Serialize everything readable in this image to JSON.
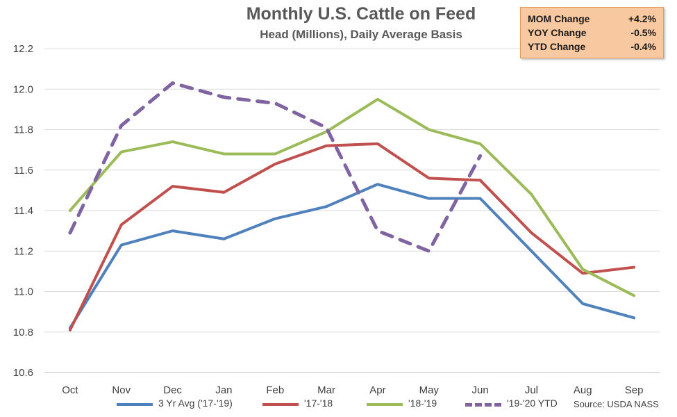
{
  "chart_data": {
    "type": "line",
    "title": "Monthly U.S. Cattle on Feed",
    "subtitle": "Head (Millions), Daily Average Basis",
    "categories": [
      "Oct",
      "Nov",
      "Dec",
      "Jan",
      "Feb",
      "Mar",
      "Apr",
      "May",
      "Jun",
      "Jul",
      "Aug",
      "Sep"
    ],
    "yticks": [
      "10.6",
      "10.8",
      "11.0",
      "11.2",
      "11.4",
      "11.6",
      "11.8",
      "12.0",
      "12.2"
    ],
    "ylim": [
      10.6,
      12.2
    ],
    "xlabel": "",
    "ylabel": "",
    "grid": "horizontal",
    "legend": "bottom",
    "series": [
      {
        "name": "3 Yr Avg ('17-'19)",
        "color": "#4f81bd",
        "dash": false,
        "values": [
          10.82,
          11.23,
          11.3,
          11.26,
          11.36,
          11.42,
          11.53,
          11.46,
          11.46,
          11.2,
          10.94,
          10.87
        ]
      },
      {
        "name": "'17-'18",
        "color": "#c0504d",
        "dash": false,
        "values": [
          10.81,
          11.33,
          11.52,
          11.49,
          11.63,
          11.72,
          11.73,
          11.56,
          11.55,
          11.29,
          11.09,
          11.12
        ]
      },
      {
        "name": "'18-'19",
        "color": "#9bbb59",
        "dash": false,
        "values": [
          11.4,
          11.69,
          11.74,
          11.68,
          11.68,
          11.79,
          11.95,
          11.8,
          11.73,
          11.48,
          11.11,
          10.98
        ]
      },
      {
        "name": "'19-'20 YTD",
        "color": "#8064a2",
        "dash": true,
        "values": [
          11.29,
          11.82,
          12.03,
          11.96,
          11.93,
          11.81,
          11.3,
          11.2,
          11.67,
          null,
          null,
          null
        ]
      }
    ]
  },
  "stats": [
    {
      "label": "MOM Change",
      "value": "+4.2%"
    },
    {
      "label": "YOY Change",
      "value": "-0.5%"
    },
    {
      "label": "YTD Change",
      "value": "-0.4%"
    }
  ],
  "source": "Source: USDA NASS"
}
